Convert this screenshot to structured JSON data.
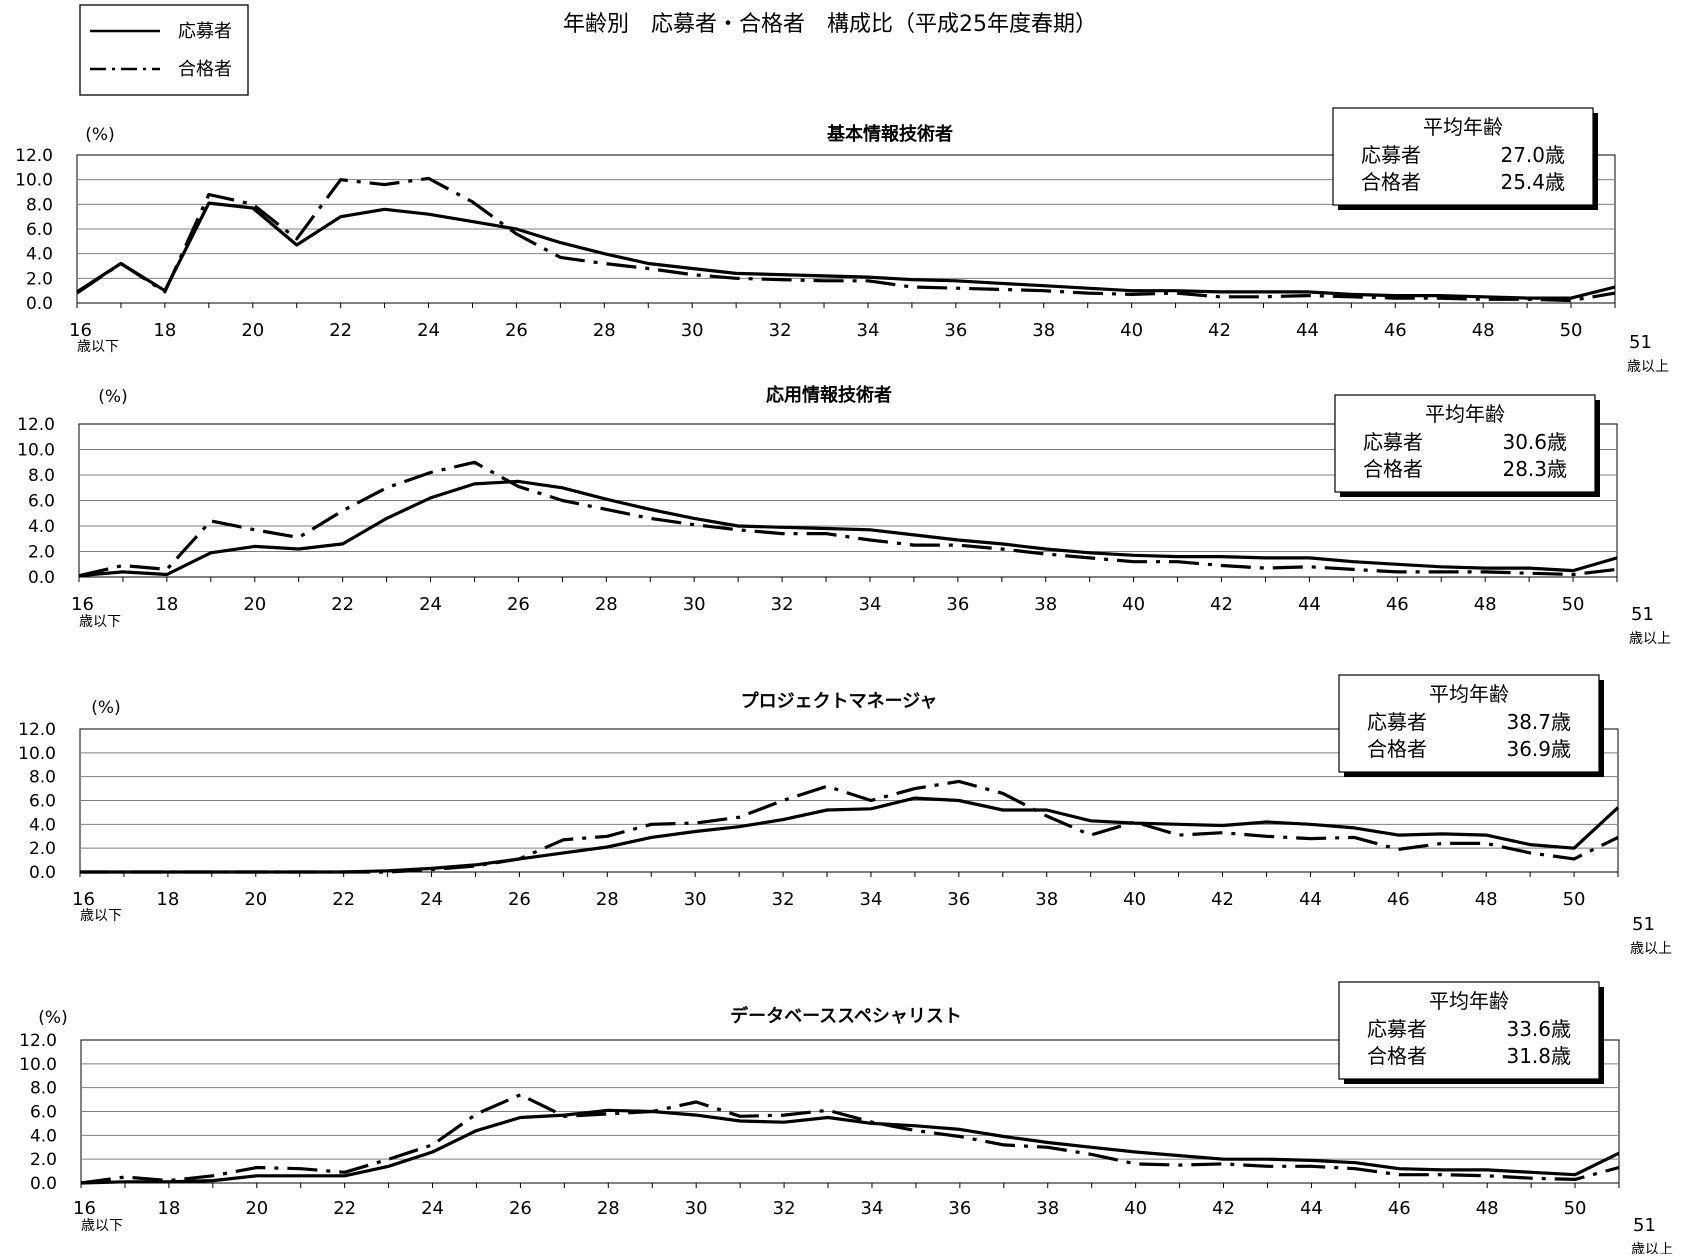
{
  "page": {
    "title": "年齢別　応募者・合格者　構成比（平成25年度春期）"
  },
  "legend": {
    "applicants": "応募者",
    "passers": "合格者"
  },
  "avg_box": {
    "title": "平均年齢"
  },
  "axis_common": {
    "unit": "(%)",
    "first_suffix": "歳以下",
    "last_suffix": "歳以上"
  },
  "chart_data": [
    {
      "type": "line",
      "title": "基本情報技術者",
      "ylabel": "(%)",
      "ylim": [
        0,
        12
      ],
      "yticks": [
        "0.0",
        "2.0",
        "4.0",
        "6.0",
        "8.0",
        "10.0",
        "12.0"
      ],
      "grid": true,
      "x": [
        16,
        17,
        18,
        19,
        20,
        21,
        22,
        23,
        24,
        25,
        26,
        27,
        28,
        29,
        30,
        31,
        32,
        33,
        34,
        35,
        36,
        37,
        38,
        39,
        40,
        41,
        42,
        43,
        44,
        45,
        46,
        47,
        48,
        49,
        50,
        51
      ],
      "xtick_labels": [
        "16",
        "18",
        "20",
        "22",
        "24",
        "26",
        "28",
        "30",
        "32",
        "34",
        "36",
        "38",
        "40",
        "42",
        "44",
        "46",
        "48",
        "50",
        "51"
      ],
      "series": [
        {
          "name": "応募者",
          "values": [
            0.9,
            3.2,
            1.0,
            8.1,
            7.7,
            4.7,
            7.0,
            7.6,
            7.2,
            6.6,
            6.0,
            4.9,
            4.0,
            3.2,
            2.8,
            2.4,
            2.3,
            2.2,
            2.1,
            1.9,
            1.8,
            1.6,
            1.4,
            1.2,
            1.0,
            1.0,
            0.9,
            0.9,
            0.9,
            0.7,
            0.6,
            0.6,
            0.5,
            0.4,
            0.4,
            1.3
          ]
        },
        {
          "name": "合格者",
          "values": [
            0.8,
            3.2,
            0.9,
            8.8,
            8.0,
            5.2,
            10.0,
            9.6,
            10.1,
            8.2,
            5.6,
            3.7,
            3.2,
            2.8,
            2.3,
            2.0,
            1.9,
            1.8,
            1.8,
            1.3,
            1.2,
            1.1,
            1.0,
            0.8,
            0.7,
            0.8,
            0.5,
            0.5,
            0.6,
            0.5,
            0.4,
            0.4,
            0.3,
            0.3,
            0.2,
            0.8
          ]
        }
      ],
      "averages": [
        {
          "label": "応募者",
          "value": "27.0歳"
        },
        {
          "label": "合格者",
          "value": "25.4歳"
        }
      ]
    },
    {
      "type": "line",
      "title": "応用情報技術者",
      "ylabel": "(%)",
      "ylim": [
        0,
        12
      ],
      "yticks": [
        "0.0",
        "2.0",
        "4.0",
        "6.0",
        "8.0",
        "10.0",
        "12.0"
      ],
      "grid": true,
      "x": [
        16,
        17,
        18,
        19,
        20,
        21,
        22,
        23,
        24,
        25,
        26,
        27,
        28,
        29,
        30,
        31,
        32,
        33,
        34,
        35,
        36,
        37,
        38,
        39,
        40,
        41,
        42,
        43,
        44,
        45,
        46,
        47,
        48,
        49,
        50,
        51
      ],
      "xtick_labels": [
        "16",
        "18",
        "20",
        "22",
        "24",
        "26",
        "28",
        "30",
        "32",
        "34",
        "36",
        "38",
        "40",
        "42",
        "44",
        "46",
        "48",
        "50",
        "51"
      ],
      "series": [
        {
          "name": "応募者",
          "values": [
            0.1,
            0.4,
            0.2,
            1.9,
            2.4,
            2.2,
            2.6,
            4.6,
            6.2,
            7.3,
            7.5,
            7.0,
            6.1,
            5.3,
            4.6,
            4.0,
            3.9,
            3.8,
            3.7,
            3.3,
            2.9,
            2.6,
            2.2,
            1.9,
            1.7,
            1.6,
            1.6,
            1.5,
            1.5,
            1.2,
            1.0,
            0.8,
            0.7,
            0.7,
            0.5,
            1.5
          ]
        },
        {
          "name": "合格者",
          "values": [
            0.1,
            0.9,
            0.6,
            4.4,
            3.7,
            3.1,
            5.2,
            7.0,
            8.2,
            9.0,
            7.1,
            6.0,
            5.3,
            4.6,
            4.1,
            3.7,
            3.4,
            3.4,
            2.9,
            2.5,
            2.5,
            2.2,
            1.8,
            1.5,
            1.2,
            1.2,
            0.9,
            0.7,
            0.8,
            0.6,
            0.4,
            0.4,
            0.4,
            0.3,
            0.2,
            0.6
          ]
        }
      ],
      "averages": [
        {
          "label": "応募者",
          "value": "30.6歳"
        },
        {
          "label": "合格者",
          "value": "28.3歳"
        }
      ]
    },
    {
      "type": "line",
      "title": "プロジェクトマネージャ",
      "ylabel": "(%)",
      "ylim": [
        0,
        12
      ],
      "yticks": [
        "0.0",
        "2.0",
        "4.0",
        "6.0",
        "8.0",
        "10.0",
        "12.0"
      ],
      "grid": true,
      "x": [
        16,
        17,
        18,
        19,
        20,
        21,
        22,
        23,
        24,
        25,
        26,
        27,
        28,
        29,
        30,
        31,
        32,
        33,
        34,
        35,
        36,
        37,
        38,
        39,
        40,
        41,
        42,
        43,
        44,
        45,
        46,
        47,
        48,
        49,
        50,
        51
      ],
      "xtick_labels": [
        "16",
        "18",
        "20",
        "22",
        "24",
        "26",
        "28",
        "30",
        "32",
        "34",
        "36",
        "38",
        "40",
        "42",
        "44",
        "46",
        "48",
        "50",
        "51"
      ],
      "series": [
        {
          "name": "応募者",
          "values": [
            0.0,
            0.0,
            0.0,
            0.0,
            0.0,
            0.0,
            0.0,
            0.1,
            0.3,
            0.6,
            1.1,
            1.6,
            2.1,
            2.9,
            3.4,
            3.8,
            4.4,
            5.2,
            5.3,
            6.2,
            6.0,
            5.2,
            5.2,
            4.3,
            4.1,
            4.0,
            3.9,
            4.2,
            4.0,
            3.7,
            3.1,
            3.2,
            3.1,
            2.3,
            2.0,
            5.4
          ]
        },
        {
          "name": "合格者",
          "values": [
            0.0,
            0.0,
            0.0,
            0.0,
            0.0,
            0.0,
            0.0,
            0.0,
            0.2,
            0.5,
            1.1,
            2.7,
            3.0,
            4.0,
            4.1,
            4.6,
            6.0,
            7.2,
            6.0,
            7.0,
            7.6,
            6.6,
            4.7,
            3.1,
            4.2,
            3.1,
            3.3,
            3.0,
            2.8,
            2.9,
            1.9,
            2.4,
            2.4,
            1.6,
            1.1,
            2.9
          ]
        }
      ],
      "averages": [
        {
          "label": "応募者",
          "value": "38.7歳"
        },
        {
          "label": "合格者",
          "value": "36.9歳"
        }
      ]
    },
    {
      "type": "line",
      "title": "データベーススペシャリスト",
      "ylabel": "(%)",
      "ylim": [
        0,
        12
      ],
      "yticks": [
        "0.0",
        "2.0",
        "4.0",
        "6.0",
        "8.0",
        "10.0",
        "12.0"
      ],
      "grid": true,
      "x": [
        16,
        17,
        18,
        19,
        20,
        21,
        22,
        23,
        24,
        25,
        26,
        27,
        28,
        29,
        30,
        31,
        32,
        33,
        34,
        35,
        36,
        37,
        38,
        39,
        40,
        41,
        42,
        43,
        44,
        45,
        46,
        47,
        48,
        49,
        50,
        51
      ],
      "xtick_labels": [
        "16",
        "18",
        "20",
        "22",
        "24",
        "26",
        "28",
        "30",
        "32",
        "34",
        "36",
        "38",
        "40",
        "42",
        "44",
        "46",
        "48",
        "50",
        "51"
      ],
      "series": [
        {
          "name": "応募者",
          "values": [
            0.0,
            0.1,
            0.1,
            0.2,
            0.6,
            0.6,
            0.6,
            1.4,
            2.6,
            4.4,
            5.5,
            5.7,
            6.1,
            6.0,
            5.7,
            5.2,
            5.1,
            5.5,
            5.0,
            4.8,
            4.5,
            3.9,
            3.4,
            3.0,
            2.6,
            2.3,
            2.0,
            2.0,
            1.9,
            1.7,
            1.2,
            1.1,
            1.1,
            0.9,
            0.7,
            2.5
          ]
        },
        {
          "name": "合格者",
          "values": [
            0.0,
            0.5,
            0.2,
            0.6,
            1.3,
            1.2,
            0.9,
            2.0,
            3.2,
            5.8,
            7.4,
            5.6,
            5.8,
            6.0,
            6.8,
            5.6,
            5.7,
            6.1,
            5.1,
            4.4,
            3.9,
            3.2,
            3.0,
            2.4,
            1.6,
            1.5,
            1.6,
            1.4,
            1.4,
            1.2,
            0.7,
            0.7,
            0.6,
            0.4,
            0.3,
            1.3
          ]
        }
      ],
      "averages": [
        {
          "label": "応募者",
          "value": "33.6歳"
        },
        {
          "label": "合格者",
          "value": "31.8歳"
        }
      ]
    }
  ]
}
